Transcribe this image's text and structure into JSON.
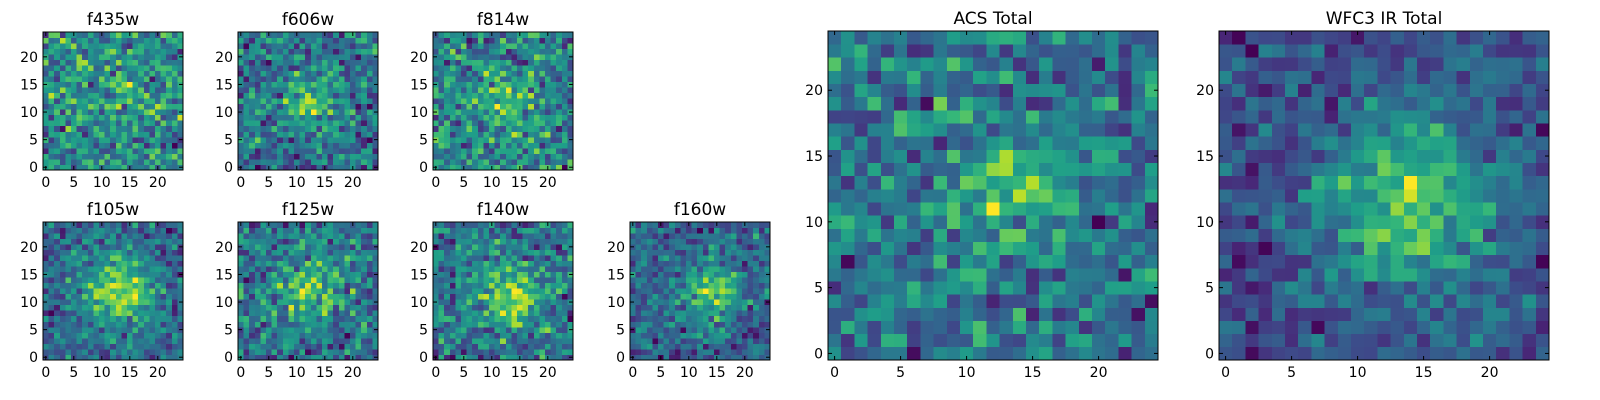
{
  "chart_data": [
    {
      "type": "heatmap",
      "title": "f435w",
      "xticks": [
        0,
        5,
        10,
        15,
        20
      ],
      "yticks": [
        0,
        5,
        10,
        15,
        20
      ],
      "xlim": [
        -0.5,
        24.5
      ],
      "ylim": [
        -0.5,
        24.5
      ],
      "grid_size": 25,
      "colormap": "viridis",
      "source_position": [
        13,
        12
      ],
      "source_strength": 0.15,
      "source_width": 3.5,
      "noise": 0.42,
      "seed": 11
    },
    {
      "type": "heatmap",
      "title": "f606w",
      "xticks": [
        0,
        5,
        10,
        15,
        20
      ],
      "yticks": [
        0,
        5,
        10,
        15,
        20
      ],
      "xlim": [
        -0.5,
        24.5
      ],
      "ylim": [
        -0.5,
        24.5
      ],
      "grid_size": 25,
      "colormap": "viridis",
      "source_position": [
        12,
        12
      ],
      "source_strength": 0.4,
      "source_width": 3.0,
      "noise": 0.3,
      "seed": 22
    },
    {
      "type": "heatmap",
      "title": "f814w",
      "xticks": [
        0,
        5,
        10,
        15,
        20
      ],
      "yticks": [
        0,
        5,
        10,
        15,
        20
      ],
      "xlim": [
        -0.5,
        24.5
      ],
      "ylim": [
        -0.5,
        24.5
      ],
      "grid_size": 25,
      "colormap": "viridis",
      "source_position": [
        12,
        12
      ],
      "source_strength": 0.3,
      "source_width": 3.5,
      "noise": 0.38,
      "seed": 33
    },
    {
      "type": "heatmap",
      "title": "f105w",
      "xticks": [
        0,
        5,
        10,
        15,
        20
      ],
      "yticks": [
        0,
        5,
        10,
        15,
        20
      ],
      "xlim": [
        -0.5,
        24.5
      ],
      "ylim": [
        -0.5,
        24.5
      ],
      "grid_size": 25,
      "colormap": "viridis",
      "source_position": [
        13,
        12
      ],
      "source_strength": 0.45,
      "source_width": 4.5,
      "noise": 0.25,
      "seed": 44
    },
    {
      "type": "heatmap",
      "title": "f125w",
      "xticks": [
        0,
        5,
        10,
        15,
        20
      ],
      "yticks": [
        0,
        5,
        10,
        15,
        20
      ],
      "xlim": [
        -0.5,
        24.5
      ],
      "ylim": [
        -0.5,
        24.5
      ],
      "grid_size": 25,
      "colormap": "viridis",
      "source_position": [
        13,
        12
      ],
      "source_strength": 0.35,
      "source_width": 4.5,
      "noise": 0.33,
      "seed": 55
    },
    {
      "type": "heatmap",
      "title": "f140w",
      "xticks": [
        0,
        5,
        10,
        15,
        20
      ],
      "yticks": [
        0,
        5,
        10,
        15,
        20
      ],
      "xlim": [
        -0.5,
        24.5
      ],
      "ylim": [
        -0.5,
        24.5
      ],
      "grid_size": 25,
      "colormap": "viridis",
      "source_position": [
        13,
        11
      ],
      "source_strength": 0.4,
      "source_width": 4.0,
      "noise": 0.33,
      "seed": 66
    },
    {
      "type": "heatmap",
      "title": "f160w",
      "xticks": [
        0,
        5,
        10,
        15,
        20
      ],
      "yticks": [
        0,
        5,
        10,
        15,
        20
      ],
      "xlim": [
        -0.5,
        24.5
      ],
      "ylim": [
        -0.5,
        24.5
      ],
      "grid_size": 25,
      "colormap": "viridis",
      "source_position": [
        14,
        12
      ],
      "source_strength": 0.45,
      "source_width": 3.5,
      "noise": 0.28,
      "seed": 77
    },
    {
      "type": "heatmap",
      "title": "ACS Total",
      "xticks": [
        0,
        5,
        10,
        15,
        20
      ],
      "yticks": [
        0,
        5,
        10,
        15,
        20
      ],
      "xlim": [
        -0.5,
        24.5
      ],
      "ylim": [
        -0.5,
        24.5
      ],
      "grid_size": 25,
      "colormap": "viridis",
      "source_position": [
        13,
        12.5
      ],
      "source_strength": 0.35,
      "source_width": 3.5,
      "noise": 0.3,
      "seed": 88
    },
    {
      "type": "heatmap",
      "title": "WFC3 IR Total",
      "xticks": [
        0,
        5,
        10,
        15,
        20
      ],
      "yticks": [
        0,
        5,
        10,
        15,
        20
      ],
      "xlim": [
        -0.5,
        24.5
      ],
      "ylim": [
        -0.5,
        24.5
      ],
      "grid_size": 25,
      "colormap": "viridis",
      "source_position": [
        14,
        11.5
      ],
      "source_strength": 0.5,
      "source_width": 4.5,
      "noise": 0.22,
      "seed": 99
    }
  ]
}
